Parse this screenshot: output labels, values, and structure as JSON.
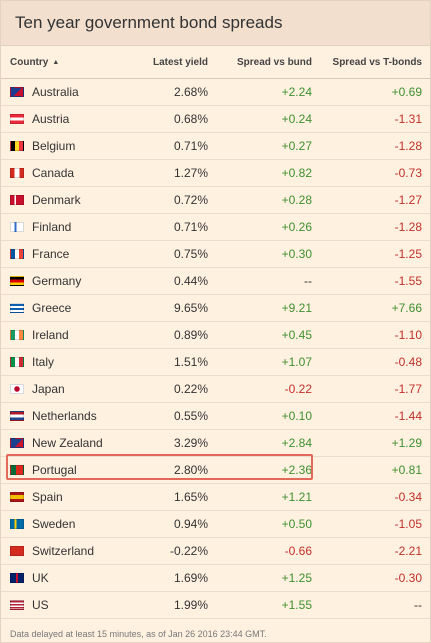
{
  "title": "Ten year government bond spreads",
  "headers": {
    "country": "Country",
    "sort_indicator": "▲",
    "yield": "Latest yield",
    "bund": "Spread vs bund",
    "tbonds": "Spread vs T-bonds"
  },
  "rows": [
    {
      "country": "Australia",
      "flag": "au",
      "yield": "2.68%",
      "bund": "+2.24",
      "bund_sign": "pos",
      "tb": "+0.69",
      "tb_sign": "pos"
    },
    {
      "country": "Austria",
      "flag": "at",
      "yield": "0.68%",
      "bund": "+0.24",
      "bund_sign": "pos",
      "tb": "-1.31",
      "tb_sign": "neg"
    },
    {
      "country": "Belgium",
      "flag": "be",
      "yield": "0.71%",
      "bund": "+0.27",
      "bund_sign": "pos",
      "tb": "-1.28",
      "tb_sign": "neg"
    },
    {
      "country": "Canada",
      "flag": "ca",
      "yield": "1.27%",
      "bund": "+0.82",
      "bund_sign": "pos",
      "tb": "-0.73",
      "tb_sign": "neg"
    },
    {
      "country": "Denmark",
      "flag": "dk",
      "yield": "0.72%",
      "bund": "+0.28",
      "bund_sign": "pos",
      "tb": "-1.27",
      "tb_sign": "neg"
    },
    {
      "country": "Finland",
      "flag": "fi",
      "yield": "0.71%",
      "bund": "+0.26",
      "bund_sign": "pos",
      "tb": "-1.28",
      "tb_sign": "neg"
    },
    {
      "country": "France",
      "flag": "fr",
      "yield": "0.75%",
      "bund": "+0.30",
      "bund_sign": "pos",
      "tb": "-1.25",
      "tb_sign": "neg"
    },
    {
      "country": "Germany",
      "flag": "de",
      "yield": "0.44%",
      "bund": "--",
      "bund_sign": "neu",
      "tb": "-1.55",
      "tb_sign": "neg"
    },
    {
      "country": "Greece",
      "flag": "gr",
      "yield": "9.65%",
      "bund": "+9.21",
      "bund_sign": "pos",
      "tb": "+7.66",
      "tb_sign": "pos"
    },
    {
      "country": "Ireland",
      "flag": "ie",
      "yield": "0.89%",
      "bund": "+0.45",
      "bund_sign": "pos",
      "tb": "-1.10",
      "tb_sign": "neg"
    },
    {
      "country": "Italy",
      "flag": "it",
      "yield": "1.51%",
      "bund": "+1.07",
      "bund_sign": "pos",
      "tb": "-0.48",
      "tb_sign": "neg"
    },
    {
      "country": "Japan",
      "flag": "jp",
      "yield": "0.22%",
      "bund": "-0.22",
      "bund_sign": "neg",
      "tb": "-1.77",
      "tb_sign": "neg"
    },
    {
      "country": "Netherlands",
      "flag": "nl",
      "yield": "0.55%",
      "bund": "+0.10",
      "bund_sign": "pos",
      "tb": "-1.44",
      "tb_sign": "neg"
    },
    {
      "country": "New Zealand",
      "flag": "nz",
      "yield": "3.29%",
      "bund": "+2.84",
      "bund_sign": "pos",
      "tb": "+1.29",
      "tb_sign": "pos"
    },
    {
      "country": "Portugal",
      "flag": "pt",
      "yield": "2.80%",
      "bund": "+2.36",
      "bund_sign": "pos",
      "tb": "+0.81",
      "tb_sign": "pos",
      "highlighted": true
    },
    {
      "country": "Spain",
      "flag": "es",
      "yield": "1.65%",
      "bund": "+1.21",
      "bund_sign": "pos",
      "tb": "-0.34",
      "tb_sign": "neg"
    },
    {
      "country": "Sweden",
      "flag": "se",
      "yield": "0.94%",
      "bund": "+0.50",
      "bund_sign": "pos",
      "tb": "-1.05",
      "tb_sign": "neg"
    },
    {
      "country": "Switzerland",
      "flag": "ch",
      "yield": "-0.22%",
      "bund": "-0.66",
      "bund_sign": "neg",
      "tb": "-2.21",
      "tb_sign": "neg"
    },
    {
      "country": "UK",
      "flag": "uk",
      "yield": "1.69%",
      "bund": "+1.25",
      "bund_sign": "pos",
      "tb": "-0.30",
      "tb_sign": "neg"
    },
    {
      "country": "US",
      "flag": "us",
      "yield": "1.99%",
      "bund": "+1.55",
      "bund_sign": "pos",
      "tb": "--",
      "tb_sign": "neu"
    }
  ],
  "footer": "Data delayed at least 15 minutes, as of Jan 26 2016 23:44 GMT.",
  "colors": {
    "background": "#fff1e0",
    "positive": "#3f8f2f",
    "negative": "#c0302b",
    "highlight_border": "#e36a5a"
  }
}
